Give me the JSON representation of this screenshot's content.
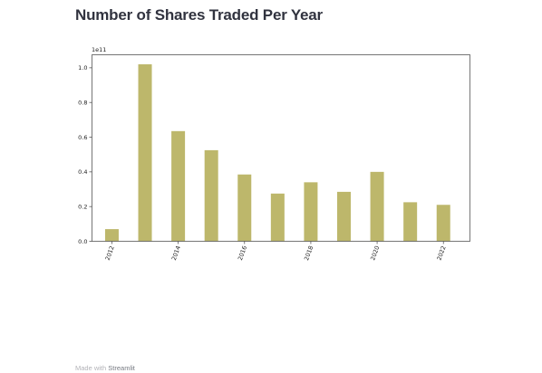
{
  "page": {
    "title": "Number of Shares Traded Per Year"
  },
  "footer": {
    "made_with": "Made with",
    "brand": "Streamlit"
  },
  "chart_data": {
    "type": "bar",
    "title": "",
    "xlabel": "",
    "ylabel": "",
    "y_offset_label": "1e11",
    "bar_color": "#bdb76b",
    "x": [
      2012,
      2013,
      2014,
      2015,
      2016,
      2017,
      2018,
      2019,
      2020,
      2021,
      2022
    ],
    "values": [
      0.07,
      1.02,
      0.635,
      0.525,
      0.385,
      0.275,
      0.34,
      0.285,
      0.4,
      0.225,
      0.21
    ],
    "value_scale": 100000000000.0,
    "xlim": [
      2011.4,
      2022.8
    ],
    "ylim": [
      0,
      1.075
    ],
    "x_ticks": [
      2012,
      2014,
      2016,
      2018,
      2020,
      2022
    ],
    "y_ticks": [
      "0.0",
      "0.2",
      "0.4",
      "0.6",
      "0.8",
      "1.0"
    ],
    "grid": false,
    "legend": "none"
  }
}
